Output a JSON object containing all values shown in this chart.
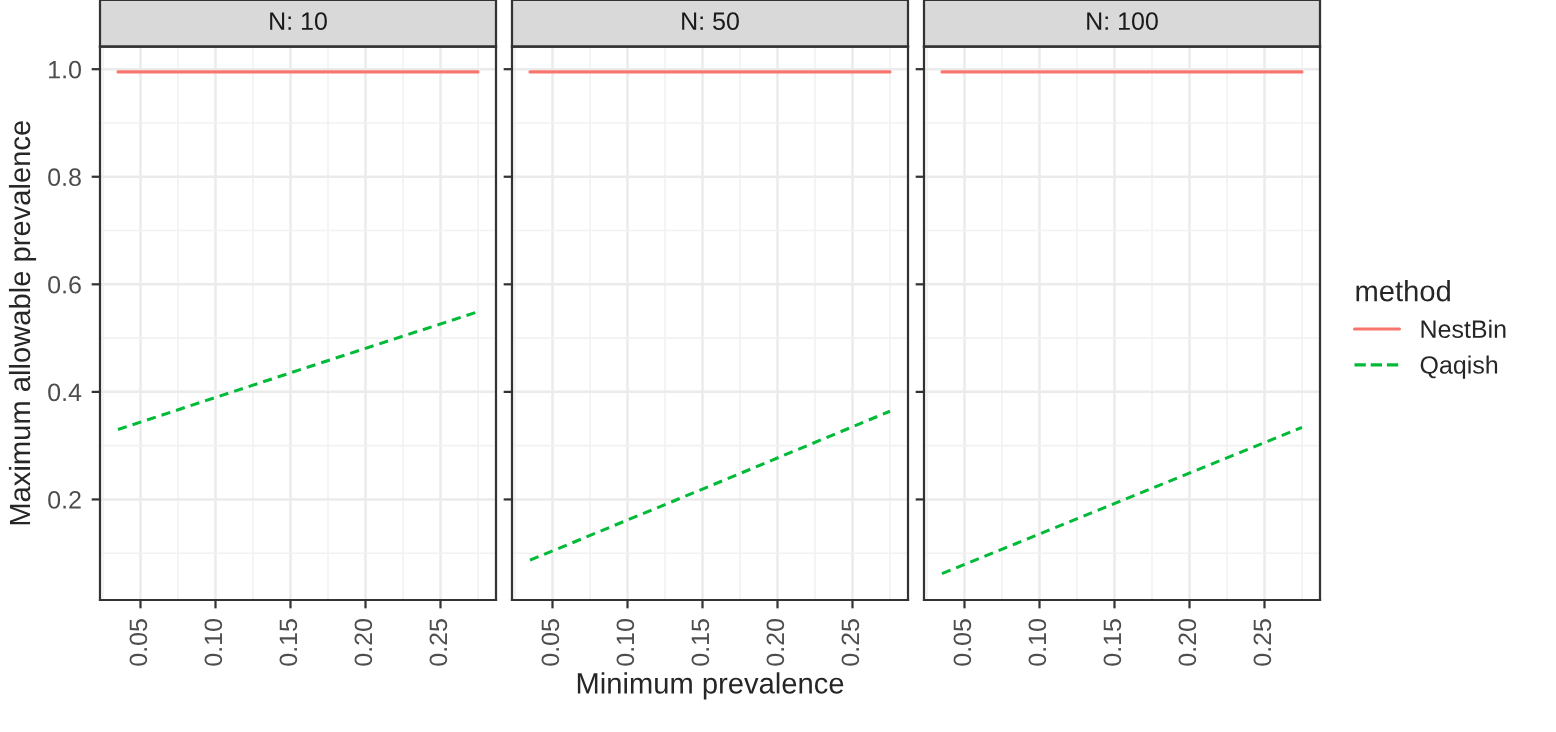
{
  "chart_data": [
    {
      "type": "line",
      "title": "N: 10",
      "ylabel": "Maximum allowable prevalence",
      "legend_title": "method",
      "legend": "right",
      "grid": true,
      "xlim": [
        0.023,
        0.287
      ],
      "xticks": [
        {
          "value": 0.05,
          "label": "0.05"
        },
        {
          "value": 0.1,
          "label": "0.10"
        },
        {
          "value": 0.15,
          "label": "0.15"
        },
        {
          "value": 0.2,
          "label": "0.20"
        },
        {
          "value": 0.25,
          "label": "0.25"
        }
      ],
      "ylim": [
        0.013,
        1.042
      ],
      "yticks": [
        0.2,
        0.4,
        0.6,
        0.8,
        {
          "value": 1,
          "label": "1.0"
        }
      ],
      "series": [
        {
          "name": "NestBin",
          "color": "#f8766d",
          "line_style": "solid",
          "x": [
            0.035,
            0.155,
            0.275
          ],
          "values": [
            0.995,
            0.995,
            0.995
          ]
        },
        {
          "name": "Qaqish",
          "color": "#00ba38",
          "line_style": "dashed",
          "x": [
            0.035,
            0.155,
            0.275
          ],
          "values": [
            0.33,
            0.44,
            0.549
          ]
        }
      ]
    },
    {
      "type": "line",
      "title": "N: 50",
      "xlabel": "Minimum prevalence",
      "grid": true,
      "tick_labels": "x",
      "xlim": [
        0.023,
        0.287
      ],
      "xticks": [
        {
          "value": 0.05,
          "label": "0.05"
        },
        {
          "value": 0.1,
          "label": "0.10"
        },
        {
          "value": 0.15,
          "label": "0.15"
        },
        {
          "value": 0.2,
          "label": "0.20"
        },
        {
          "value": 0.25,
          "label": "0.25"
        }
      ],
      "ylim": [
        0.013,
        1.042
      ],
      "yticks": [
        0.2,
        0.4,
        0.6,
        0.8,
        1.0
      ],
      "series": [
        {
          "name": "NestBin",
          "color": "#f8766d",
          "line_style": "solid",
          "x": [
            0.035,
            0.155,
            0.275
          ],
          "values": [
            0.995,
            0.995,
            0.995
          ]
        },
        {
          "name": "Qaqish",
          "color": "#00ba38",
          "line_style": "dashed",
          "x": [
            0.035,
            0.155,
            0.275
          ],
          "values": [
            0.087,
            0.225,
            0.364
          ]
        }
      ]
    },
    {
      "type": "line",
      "title": "N: 100",
      "grid": true,
      "tick_labels": "x",
      "xlim": [
        0.023,
        0.287
      ],
      "xticks": [
        {
          "value": 0.05,
          "label": "0.05"
        },
        {
          "value": 0.1,
          "label": "0.10"
        },
        {
          "value": 0.15,
          "label": "0.15"
        },
        {
          "value": 0.2,
          "label": "0.20"
        },
        {
          "value": 0.25,
          "label": "0.25"
        }
      ],
      "ylim": [
        0.013,
        1.042
      ],
      "yticks": [
        0.2,
        0.4,
        0.6,
        0.8,
        1.0
      ],
      "series": [
        {
          "name": "NestBin",
          "color": "#f8766d",
          "line_style": "solid",
          "x": [
            0.035,
            0.155,
            0.275
          ],
          "values": [
            0.995,
            0.995,
            0.995
          ]
        },
        {
          "name": "Qaqish",
          "color": "#00ba38",
          "line_style": "dashed",
          "x": [
            0.035,
            0.155,
            0.275
          ],
          "values": [
            0.062,
            0.198,
            0.334
          ]
        }
      ]
    }
  ]
}
